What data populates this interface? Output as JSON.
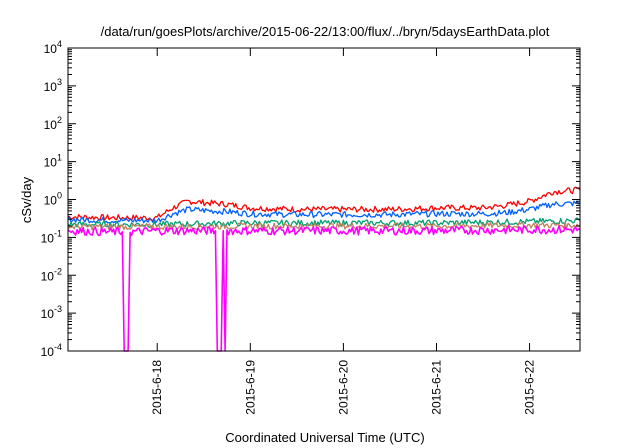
{
  "chart_data": {
    "type": "line",
    "title": "/data/run/goesPlots/archive/2015-06-22/13:00/flux/../bryn/5daysEarthData.plot",
    "xlabel": "Coordinated Universal Time (UTC)",
    "ylabel": "cSv/day",
    "yscale": "log",
    "ylim": [
      0.0001,
      10000
    ],
    "yticks": [
      {
        "base": "10",
        "exp": "-4",
        "value": 0.0001
      },
      {
        "base": "10",
        "exp": "-3",
        "value": 0.001
      },
      {
        "base": "10",
        "exp": "-2",
        "value": 0.01
      },
      {
        "base": "10",
        "exp": "-1",
        "value": 0.1
      },
      {
        "base": "10",
        "exp": "0",
        "value": 1
      },
      {
        "base": "10",
        "exp": "1",
        "value": 10
      },
      {
        "base": "10",
        "exp": "2",
        "value": 100
      },
      {
        "base": "10",
        "exp": "3",
        "value": 1000
      },
      {
        "base": "10",
        "exp": "4",
        "value": 10000
      }
    ],
    "xlim": [
      "2015-06-17 01:00",
      "2015-06-22 13:00"
    ],
    "xticks": [
      "2015-6-18",
      "2015-6-19",
      "2015-6-20",
      "2015-6-21",
      "2015-6-22"
    ],
    "grid": false,
    "legend": "none",
    "series": [
      {
        "color": "#ff0000",
        "x": [
          "2015-06-17 01:00",
          "2015-06-17 12:00",
          "2015-06-18 00:00",
          "2015-06-18 04:00",
          "2015-06-18 08:00",
          "2015-06-18 14:00",
          "2015-06-18 18:00",
          "2015-06-19 00:00",
          "2015-06-19 12:00",
          "2015-06-20 00:00",
          "2015-06-20 12:00",
          "2015-06-21 00:00",
          "2015-06-21 12:00",
          "2015-06-21 18:00",
          "2015-06-22 00:00",
          "2015-06-22 06:00",
          "2015-06-22 13:00"
        ],
        "y": [
          0.35,
          0.33,
          0.33,
          0.6,
          0.9,
          0.8,
          0.75,
          0.6,
          0.55,
          0.55,
          0.55,
          0.6,
          0.6,
          0.7,
          0.9,
          1.6,
          1.8
        ]
      },
      {
        "color": "#0060ff",
        "x": [
          "2015-06-17 01:00",
          "2015-06-17 12:00",
          "2015-06-18 00:00",
          "2015-06-18 04:00",
          "2015-06-18 08:00",
          "2015-06-18 14:00",
          "2015-06-18 18:00",
          "2015-06-19 00:00",
          "2015-06-19 12:00",
          "2015-06-20 00:00",
          "2015-06-20 12:00",
          "2015-06-21 00:00",
          "2015-06-21 12:00",
          "2015-06-21 18:00",
          "2015-06-22 00:00",
          "2015-06-22 06:00",
          "2015-06-22 13:00"
        ],
        "y": [
          0.3,
          0.28,
          0.28,
          0.42,
          0.55,
          0.5,
          0.48,
          0.42,
          0.4,
          0.4,
          0.4,
          0.42,
          0.42,
          0.45,
          0.55,
          0.75,
          0.8
        ]
      },
      {
        "color": "#00a070",
        "x": [
          "2015-06-17 01:00",
          "2015-06-18 00:00",
          "2015-06-19 00:00",
          "2015-06-20 00:00",
          "2015-06-21 00:00",
          "2015-06-22 00:00",
          "2015-06-22 13:00"
        ],
        "y": [
          0.22,
          0.22,
          0.24,
          0.24,
          0.24,
          0.26,
          0.28
        ]
      },
      {
        "color": "#c08060",
        "x": [
          "2015-06-17 01:00",
          "2015-06-18 00:00",
          "2015-06-19 00:00",
          "2015-06-20 00:00",
          "2015-06-21 00:00",
          "2015-06-22 00:00",
          "2015-06-22 13:00"
        ],
        "y": [
          0.19,
          0.19,
          0.2,
          0.2,
          0.2,
          0.21,
          0.21
        ]
      },
      {
        "color": "#ff00ff",
        "x": [
          "2015-06-17 01:00",
          "2015-06-17 12:00",
          "2015-06-17 15:00",
          "2015-06-17 15:30",
          "2015-06-17 16:30",
          "2015-06-17 17:00",
          "2015-06-18 00:00",
          "2015-06-18 12:00",
          "2015-06-18 15:00",
          "2015-06-18 15:30",
          "2015-06-18 16:30",
          "2015-06-18 17:00",
          "2015-06-18 17:30",
          "2015-06-18 18:00",
          "2015-06-19 00:00",
          "2015-06-20 00:00",
          "2015-06-21 00:00",
          "2015-06-22 00:00",
          "2015-06-22 13:00"
        ],
        "y": [
          0.15,
          0.14,
          0.14,
          0.0001,
          0.0001,
          0.14,
          0.15,
          0.15,
          0.15,
          0.0001,
          0.0001,
          0.15,
          0.0001,
          0.15,
          0.15,
          0.15,
          0.15,
          0.16,
          0.16
        ]
      }
    ]
  }
}
